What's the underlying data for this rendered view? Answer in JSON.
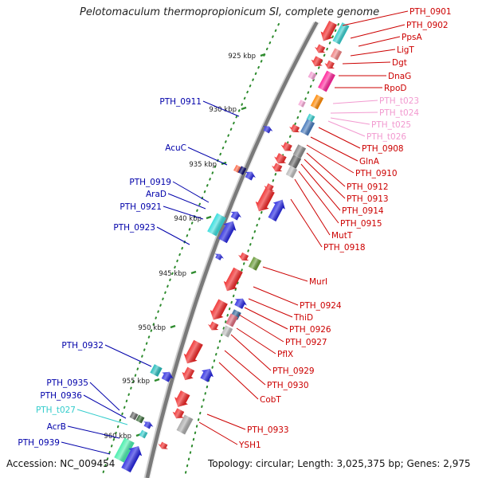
{
  "title": "Pelotomaculum thermopropionicum SI, complete genome",
  "footer": {
    "accession": "Accession: NC_009454",
    "summary": "Topology: circular; Length: 3,025,375 bp; Genes: 2,975"
  },
  "colors": {
    "forward_labels": "#cc0000",
    "reverse_labels": "#0000aa",
    "trna_forward": "#f29ad0",
    "trna_reverse": "#33cccc",
    "backbone": "#888888",
    "tick": "#2e8b2e"
  },
  "scale_ticks": [
    "925 kbp",
    "930 kbp",
    "935 kbp",
    "940 kbp",
    "945 kbp",
    "950 kbp",
    "955 kbp",
    "960 kbp"
  ],
  "forward_features": [
    {
      "label": "PTH_0901",
      "color": "#cc0000"
    },
    {
      "label": "PTH_0902",
      "color": "#cc0000"
    },
    {
      "label": "PpsA",
      "color": "#cc0000"
    },
    {
      "label": "LigT",
      "color": "#cc0000"
    },
    {
      "label": "Dgt",
      "color": "#cc0000"
    },
    {
      "label": "DnaG",
      "color": "#cc0000"
    },
    {
      "label": "RpoD",
      "color": "#cc0000"
    },
    {
      "label": "PTH_t023",
      "color": "#f29ad0"
    },
    {
      "label": "PTH_t024",
      "color": "#f29ad0"
    },
    {
      "label": "PTH_t025",
      "color": "#f29ad0"
    },
    {
      "label": "PTH_t026",
      "color": "#f29ad0"
    },
    {
      "label": "PTH_0908",
      "color": "#cc0000"
    },
    {
      "label": "GlnA",
      "color": "#cc0000"
    },
    {
      "label": "PTH_0910",
      "color": "#cc0000"
    },
    {
      "label": "PTH_0912",
      "color": "#cc0000"
    },
    {
      "label": "PTH_0913",
      "color": "#cc0000"
    },
    {
      "label": "PTH_0914",
      "color": "#cc0000"
    },
    {
      "label": "PTH_0915",
      "color": "#cc0000"
    },
    {
      "label": "MutT",
      "color": "#cc0000"
    },
    {
      "label": "PTH_0918",
      "color": "#cc0000"
    },
    {
      "label": "MurI",
      "color": "#cc0000"
    },
    {
      "label": "PTH_0924",
      "color": "#cc0000"
    },
    {
      "label": "ThiD",
      "color": "#cc0000"
    },
    {
      "label": "PTH_0926",
      "color": "#cc0000"
    },
    {
      "label": "PTH_0927",
      "color": "#cc0000"
    },
    {
      "label": "PflX",
      "color": "#cc0000"
    },
    {
      "label": "PTH_0929",
      "color": "#cc0000"
    },
    {
      "label": "PTH_0930",
      "color": "#cc0000"
    },
    {
      "label": "CobT",
      "color": "#cc0000"
    },
    {
      "label": "PTH_0933",
      "color": "#cc0000"
    },
    {
      "label": "YSH1",
      "color": "#cc0000"
    }
  ],
  "reverse_features": [
    {
      "label": "PTH_0911",
      "color": "#0000aa"
    },
    {
      "label": "AcuC",
      "color": "#0000aa"
    },
    {
      "label": "PTH_0919",
      "color": "#0000aa"
    },
    {
      "label": "AraD",
      "color": "#0000aa"
    },
    {
      "label": "PTH_0921",
      "color": "#0000aa"
    },
    {
      "label": "PTH_0923",
      "color": "#0000aa"
    },
    {
      "label": "PTH_0932",
      "color": "#0000aa"
    },
    {
      "label": "PTH_0935",
      "color": "#0000aa"
    },
    {
      "label": "PTH_0936",
      "color": "#0000aa"
    },
    {
      "label": "PTH_t027",
      "color": "#33cccc"
    },
    {
      "label": "AcrB",
      "color": "#0000aa"
    },
    {
      "label": "PTH_0939",
      "color": "#0000aa"
    }
  ]
}
